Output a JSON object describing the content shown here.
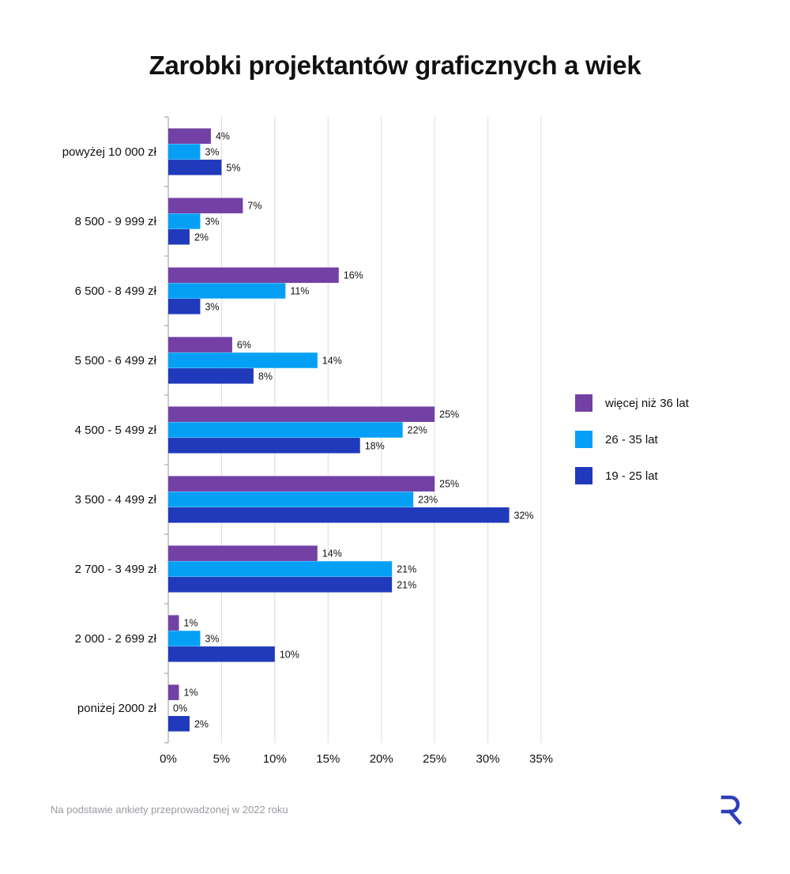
{
  "title": "Zarobki projektantów graficznych a wiek",
  "footnote": "Na podstawie ankiety przeprowadzonej w 2022 roku",
  "logo": {
    "icon": "r-logo-icon",
    "color": "#2d3eb8"
  },
  "colors": {
    "grid": "#dcdcdc",
    "axis": "#9a9a9a",
    "text": "#111111"
  },
  "chart_data": {
    "type": "bar",
    "orientation": "horizontal",
    "categories": [
      "powyżej 10 000 zł",
      "8 500 - 9 999 zł",
      "6 500 - 8 499 zł",
      "5 500 - 6 499 zł",
      "4 500 - 5 499 zł",
      "3 500 - 4 499 zł",
      "2 700 - 3 499 zł",
      "2 000 - 2 699 zł",
      "poniżej 2000 zł"
    ],
    "series": [
      {
        "name": "więcej niż 36 lat",
        "color": "#7340a6",
        "values": [
          4,
          7,
          16,
          6,
          25,
          25,
          14,
          1,
          1
        ]
      },
      {
        "name": "26 - 35 lat",
        "color": "#05a0f5",
        "values": [
          3,
          3,
          11,
          14,
          22,
          23,
          21,
          3,
          0
        ]
      },
      {
        "name": "19 - 25 lat",
        "color": "#203abb",
        "values": [
          5,
          2,
          3,
          8,
          18,
          32,
          21,
          10,
          2
        ]
      }
    ],
    "value_suffix": "%",
    "xlim": [
      0,
      35
    ],
    "xticks": [
      "0%",
      "5%",
      "10%",
      "15%",
      "20%",
      "25%",
      "30%",
      "35%"
    ],
    "xtick_values": [
      0,
      5,
      10,
      15,
      20,
      25,
      30,
      35
    ],
    "grid": true,
    "legend_position": "right"
  }
}
